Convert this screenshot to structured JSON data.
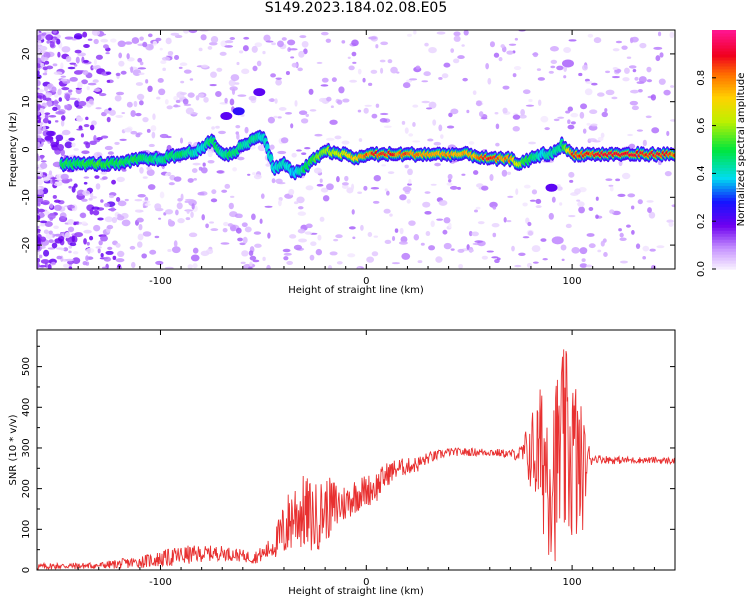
{
  "title": "S149.2023.184.02.08.E05",
  "chart_data": [
    {
      "type": "heatmap",
      "title": "",
      "xlabel": "Height of straight line (km)",
      "ylabel": "Frequency (Hz)",
      "xlim": [
        -160,
        150
      ],
      "ylim": [
        -25,
        25
      ],
      "xticks": [
        -100,
        0,
        100
      ],
      "yticks": [
        -20,
        -10,
        0,
        10,
        20
      ],
      "colorbar": {
        "label": "Normalized spectral amplitude",
        "range": [
          0,
          1
        ],
        "ticks": [
          0.0,
          0.2,
          0.4,
          0.6,
          0.8
        ]
      },
      "ridge": {
        "x": [
          -140,
          -130,
          -120,
          -110,
          -100,
          -90,
          -80,
          -75,
          -70,
          -65,
          -60,
          -55,
          -50,
          -45,
          -40,
          -35,
          -30,
          -25,
          -20,
          -15,
          -10,
          -5,
          0,
          10,
          20,
          30,
          40,
          50,
          60,
          70,
          75,
          80,
          85,
          90,
          95,
          100,
          110,
          120,
          130,
          140,
          150
        ],
        "y": [
          -3,
          -3,
          -3,
          -2,
          -2,
          -1,
          0,
          2,
          -1,
          -1,
          1,
          2,
          3,
          -4,
          -3,
          -5,
          -4,
          -2,
          0,
          -1,
          -1,
          -2,
          -1,
          -1,
          -1,
          -1,
          -1,
          -1,
          -2,
          -2,
          -3,
          -2,
          -1,
          -1,
          1,
          -1,
          -1,
          -1,
          -1,
          -1,
          -1
        ],
        "amplitude": [
          0.5,
          0.55,
          0.5,
          0.5,
          0.45,
          0.5,
          0.4,
          0.5,
          0.45,
          0.5,
          0.45,
          0.45,
          0.4,
          0.4,
          0.45,
          0.35,
          0.5,
          0.55,
          0.6,
          0.65,
          0.7,
          0.75,
          0.85,
          0.9,
          0.85,
          0.8,
          0.8,
          0.75,
          0.9,
          0.8,
          0.6,
          0.5,
          0.4,
          0.45,
          0.45,
          0.85,
          0.9,
          1.0,
          0.95,
          0.9,
          0.85
        ]
      },
      "secondary_features": [
        {
          "x": -62,
          "y": 8,
          "amplitude": 0.25
        },
        {
          "x": -52,
          "y": 12,
          "amplitude": 0.2
        },
        {
          "x": -68,
          "y": 7,
          "amplitude": 0.2
        },
        {
          "x": 90,
          "y": -8,
          "amplitude": 0.2
        },
        {
          "x": 98,
          "y": 18,
          "amplitude": 0.1
        },
        {
          "x": 93,
          "y": -19,
          "amplitude": 0.08
        }
      ]
    },
    {
      "type": "line",
      "title": "",
      "xlabel": "Height of straight line (km)",
      "ylabel": "SNR (10 * v/v)",
      "xlim": [
        -160,
        150
      ],
      "ylim": [
        0,
        590
      ],
      "xticks": [
        -100,
        0,
        100
      ],
      "yticks": [
        0,
        100,
        200,
        300,
        400,
        500
      ],
      "series": [
        {
          "color": "#e83030",
          "x": [
            -160,
            -150,
            -140,
            -130,
            -120,
            -110,
            -100,
            -90,
            -80,
            -70,
            -60,
            -55,
            -50,
            -45,
            -40,
            -35,
            -30,
            -25,
            -20,
            -15,
            -10,
            -5,
            0,
            5,
            10,
            15,
            20,
            25,
            30,
            40,
            50,
            60,
            70,
            75,
            80,
            85,
            88,
            90,
            92,
            95,
            100,
            103,
            105,
            108,
            110,
            120,
            130,
            140,
            150
          ],
          "values": [
            8,
            10,
            10,
            11,
            15,
            20,
            27,
            35,
            40,
            42,
            35,
            30,
            40,
            60,
            95,
            140,
            140,
            125,
            150,
            155,
            165,
            185,
            195,
            205,
            235,
            250,
            255,
            260,
            275,
            290,
            290,
            290,
            285,
            285,
            290,
            280,
            270,
            260,
            250,
            300,
            290,
            250,
            240,
            275,
            275,
            270,
            270,
            270,
            268
          ],
          "noise_amplitude": [
            8,
            8,
            8,
            8,
            12,
            15,
            20,
            25,
            20,
            18,
            15,
            15,
            20,
            30,
            75,
            90,
            95,
            90,
            80,
            70,
            45,
            45,
            40,
            40,
            30,
            25,
            20,
            20,
            15,
            10,
            10,
            10,
            10,
            20,
            100,
            180,
            230,
            240,
            230,
            250,
            240,
            200,
            150,
            40,
            10,
            10,
            8,
            8,
            8
          ]
        }
      ]
    }
  ]
}
